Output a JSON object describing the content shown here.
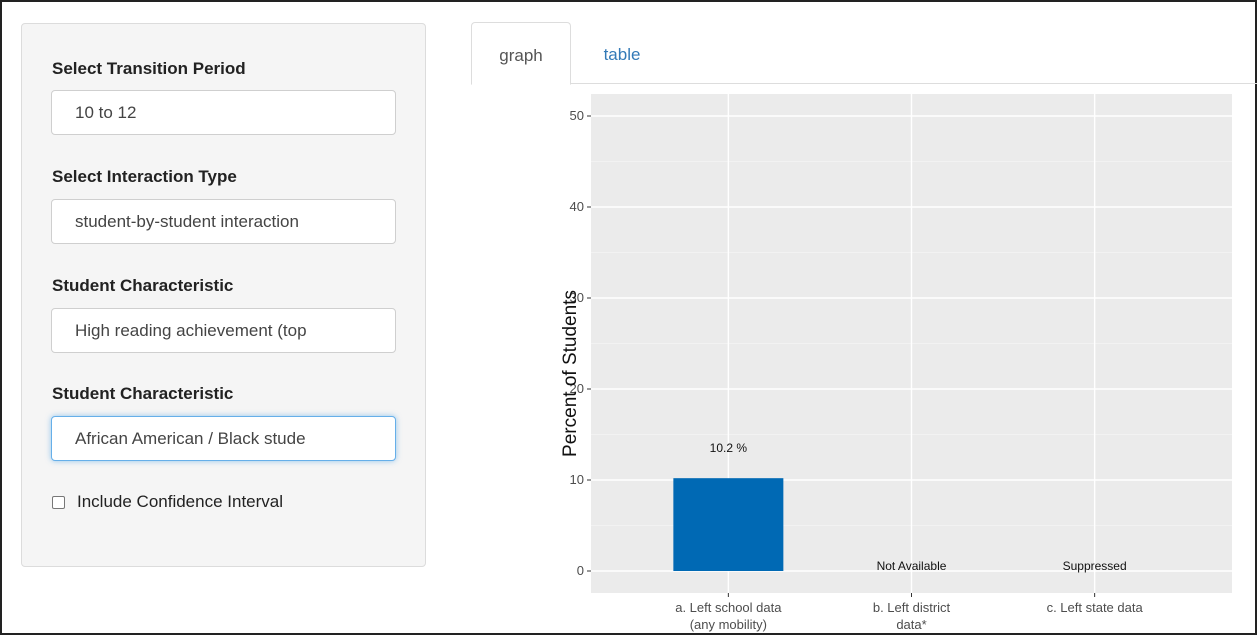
{
  "sidebar": {
    "controls": [
      {
        "label": "Select Transition Period",
        "value": "10 to 12"
      },
      {
        "label": "Select Interaction Type",
        "value": "student-by-student interaction"
      },
      {
        "label": "Student Characteristic",
        "value": "High reading achievement (top"
      },
      {
        "label": "Student Characteristic",
        "value": "African American / Black stude"
      }
    ],
    "checkbox_label": "Include Confidence Interval",
    "checkbox_checked": false
  },
  "tabs": [
    {
      "label": "graph",
      "active": true
    },
    {
      "label": "table",
      "active": false
    }
  ],
  "chart_data": {
    "type": "bar",
    "ylabel": "Percent of Students",
    "ylim": [
      0,
      50
    ],
    "yticks": [
      0,
      10,
      20,
      30,
      40,
      50
    ],
    "categories": [
      [
        "a. Left school data",
        "(any mobility)"
      ],
      [
        "b. Left district",
        "data*"
      ],
      [
        "c. Left state data"
      ]
    ],
    "values": [
      10.2,
      null,
      null
    ],
    "data_labels": [
      "10.2 %",
      "Not Available",
      "Suppressed"
    ],
    "bar_color": "#0069b4",
    "panel_background": "#ebebeb",
    "grid": true
  }
}
